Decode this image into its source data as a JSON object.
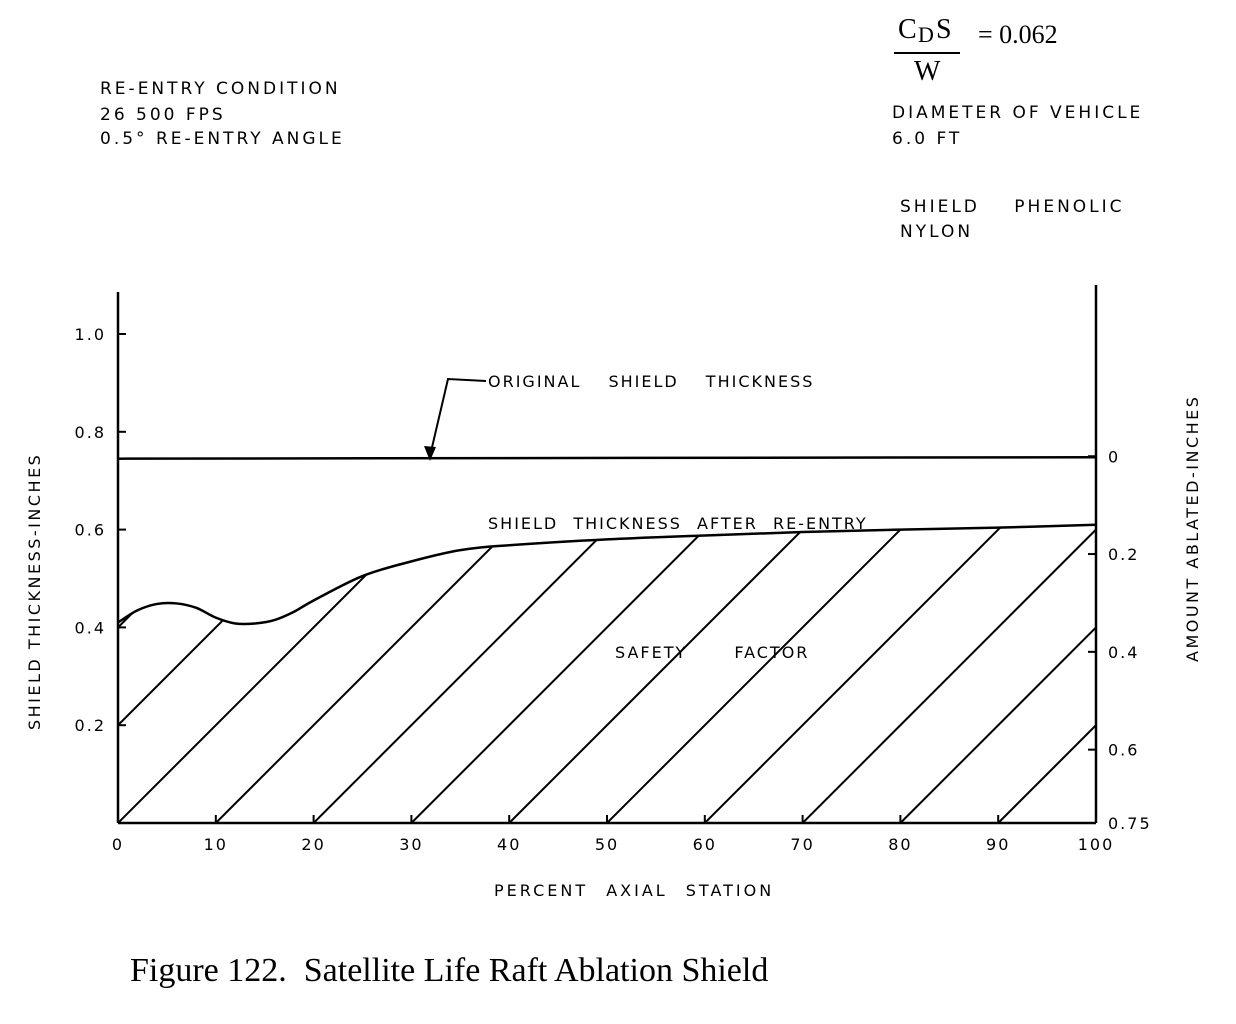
{
  "header": {
    "reentry": [
      "RE-ENTRY CONDITION",
      "26 500 FPS",
      "0.5° RE-ENTRY ANGLE"
    ],
    "formula": {
      "numerator": "C",
      "numerator_sub": "D",
      "numerator_tail": "S",
      "denominator": "W",
      "equals": "= 0.062"
    },
    "diameter": [
      "DIAMETER OF VEHICLE",
      "6.0 FT"
    ],
    "shield": [
      "SHIELD PHENOLIC",
      "NYLON"
    ]
  },
  "caption": "Figure 122.  Satellite Life Raft Ablation Shield",
  "chart_data": {
    "type": "line",
    "xlabel": "PERCENT AXIAL STATION",
    "ylabel": "SHIELD THICKNESS-INCHES",
    "y2label": "AMOUNT ABLATED-INCHES",
    "xlim": [
      0,
      100
    ],
    "ylim": [
      0,
      1.1
    ],
    "x_ticks": [
      0,
      10,
      20,
      30,
      40,
      50,
      60,
      70,
      80,
      90,
      100
    ],
    "y_ticks": [
      0.2,
      0.4,
      0.6,
      0.8,
      1.0
    ],
    "y_tick_labels": [
      "0.2",
      "0.4",
      "0.6",
      "0.8",
      "1.0"
    ],
    "y2_ticks": [
      {
        "label": "0",
        "y": 0.75
      },
      {
        "label": "0.2",
        "y": 0.55
      },
      {
        "label": "0.4",
        "y": 0.35
      },
      {
        "label": "0.6",
        "y": 0.15
      },
      {
        "label": "0.75",
        "y": 0.0
      }
    ],
    "series": [
      {
        "name": "ORIGINAL SHIELD THICKNESS",
        "x": [
          0,
          100
        ],
        "y": [
          0.745,
          0.748
        ]
      },
      {
        "name": "SHIELD THICKNESS AFTER RE-ENTRY",
        "x": [
          0,
          2,
          4,
          6,
          8,
          10,
          12,
          14,
          16,
          18,
          20,
          25,
          30,
          35,
          40,
          50,
          60,
          70,
          80,
          90,
          100
        ],
        "y": [
          0.41,
          0.435,
          0.448,
          0.449,
          0.44,
          0.42,
          0.408,
          0.408,
          0.415,
          0.432,
          0.455,
          0.505,
          0.535,
          0.558,
          0.568,
          0.58,
          0.588,
          0.595,
          0.6,
          0.604,
          0.61
        ]
      }
    ],
    "annotations": [
      "SAFETY FACTOR"
    ],
    "grid": false
  }
}
